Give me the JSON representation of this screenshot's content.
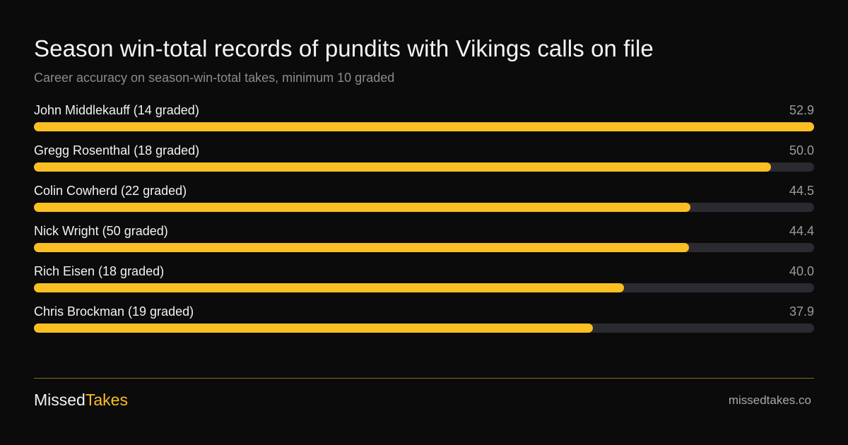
{
  "chart_data": {
    "type": "bar",
    "orientation": "horizontal",
    "title": "Season win-total records of pundits with Vikings calls on file",
    "subtitle": "Career accuracy on season-win-total takes, minimum 10 graded",
    "categories": [
      "John Middlekauff (14 graded)",
      "Gregg Rosenthal (18 graded)",
      "Colin Cowherd (22 graded)",
      "Nick Wright (50 graded)",
      "Rich Eisen (18 graded)",
      "Chris Brockman (19 graded)"
    ],
    "values": [
      52.9,
      50.0,
      44.5,
      44.4,
      40.0,
      37.9
    ],
    "value_labels": [
      "52.9",
      "50.0",
      "44.5",
      "44.4",
      "40.0",
      "37.9"
    ],
    "xlim": [
      0,
      52.9
    ],
    "grid": false,
    "colors": {
      "bar": "#fbbf24",
      "track": "#2b2a30",
      "background": "#0b0b0b"
    }
  },
  "footer": {
    "brand_part1": "Missed",
    "brand_part2": "Takes",
    "site": "missedtakes.co"
  }
}
